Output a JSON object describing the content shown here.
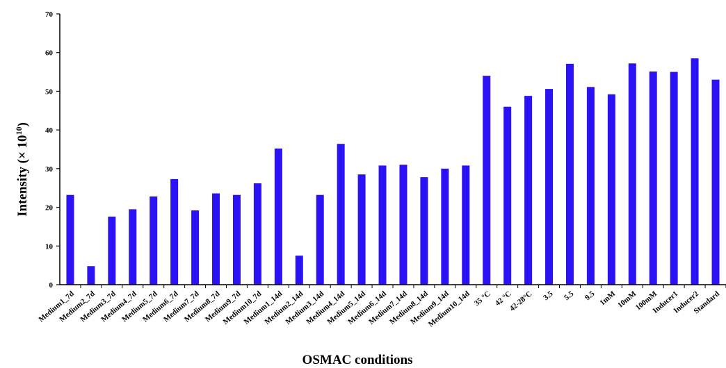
{
  "chart_data": {
    "type": "bar",
    "title": "",
    "xlabel": "OSMAC conditions",
    "ylabel_prefix": "Intensity (× 10",
    "ylabel_exp": "10",
    "ylabel_suffix": ")",
    "ylim": [
      0,
      70
    ],
    "yticks": [
      0,
      10,
      20,
      30,
      40,
      50,
      60,
      70
    ],
    "grid": false,
    "legend": "none",
    "bar_color": "#2b12f5",
    "categories": [
      "Medium1_7d",
      "Medium2_7d",
      "Medium3_7d",
      "Medium4_7d",
      "Medium5_7d",
      "Medium6_7d",
      "Medium7_7d",
      "Medium8_7d",
      "Medium9_7d",
      "Medium10_7d",
      "Medium1_14d",
      "Medium2_14d",
      "Medium3_14d",
      "Medium4_14d",
      "Medium5_14d",
      "Medium6_14d",
      "Medium7_14d",
      "Medium8_14d",
      "Medium9_14d",
      "Medium10_14d",
      "35 °C",
      "42 °C",
      "42-28°C",
      "3.5",
      "5.5",
      "9.5",
      "1mM",
      "10mM",
      "100mM",
      "Inducer1",
      "Inducer2",
      "Standard"
    ],
    "values": [
      23.2,
      4.8,
      17.6,
      19.5,
      22.8,
      27.3,
      19.2,
      23.6,
      23.2,
      26.2,
      35.2,
      7.5,
      23.2,
      36.4,
      28.5,
      30.8,
      31.0,
      27.8,
      30.0,
      30.8,
      54.0,
      46.0,
      48.8,
      50.6,
      57.1,
      51.1,
      49.2,
      57.2,
      55.1,
      55.0,
      58.5,
      53.0
    ]
  }
}
